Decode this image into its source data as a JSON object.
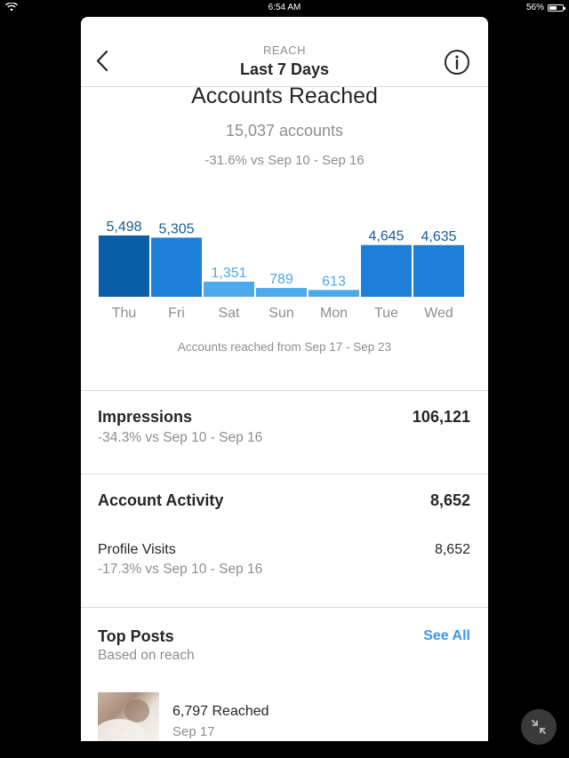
{
  "status_bar": {
    "time": "6:54 AM",
    "battery": "56%",
    "battery_level": 0.56
  },
  "header": {
    "eyebrow": "REACH",
    "title": "Last 7 Days"
  },
  "reach": {
    "title": "Accounts Reached",
    "count": "15,037 accounts",
    "change": "-31.6% vs Sep 10 - Sep 16",
    "caption": "Accounts reached from Sep 17 - Sep 23"
  },
  "chart_data": {
    "type": "bar",
    "categories": [
      "Thu",
      "Fri",
      "Sat",
      "Sun",
      "Mon",
      "Tue",
      "Wed"
    ],
    "values": [
      5498,
      5305,
      1351,
      789,
      613,
      4645,
      4635
    ],
    "value_labels": [
      "5,498",
      "5,305",
      "1,351",
      "789",
      "613",
      "4,645",
      "4,635"
    ],
    "colors": {
      "dark": "#0a5ea8",
      "medium": "#1e7fd9",
      "light": "#4ba9ec",
      "label_dark": "#1b5c96",
      "label_light": "#4ba9ec",
      "tick": "#8e8e8e"
    },
    "bar_colors": [
      "dark",
      "medium",
      "light",
      "light",
      "light",
      "medium",
      "medium"
    ],
    "ylim": [
      0,
      5498
    ]
  },
  "impressions": {
    "label": "Impressions",
    "value": "106,121",
    "change": "-34.3% vs Sep 10 - Sep 16"
  },
  "account_activity": {
    "label": "Account Activity",
    "value": "8,652",
    "profile_visits_label": "Profile Visits",
    "profile_visits_value": "8,652",
    "profile_visits_change": "-17.3% vs Sep 10 - Sep 16"
  },
  "top_posts": {
    "label": "Top Posts",
    "subtitle": "Based on reach",
    "see_all": "See All",
    "post": {
      "reached": "6,797 Reached",
      "date": "Sep 17"
    }
  },
  "icons": {
    "back": "chevron-left-icon",
    "info": "info-icon",
    "collapse": "collapse-arrows-icon"
  }
}
